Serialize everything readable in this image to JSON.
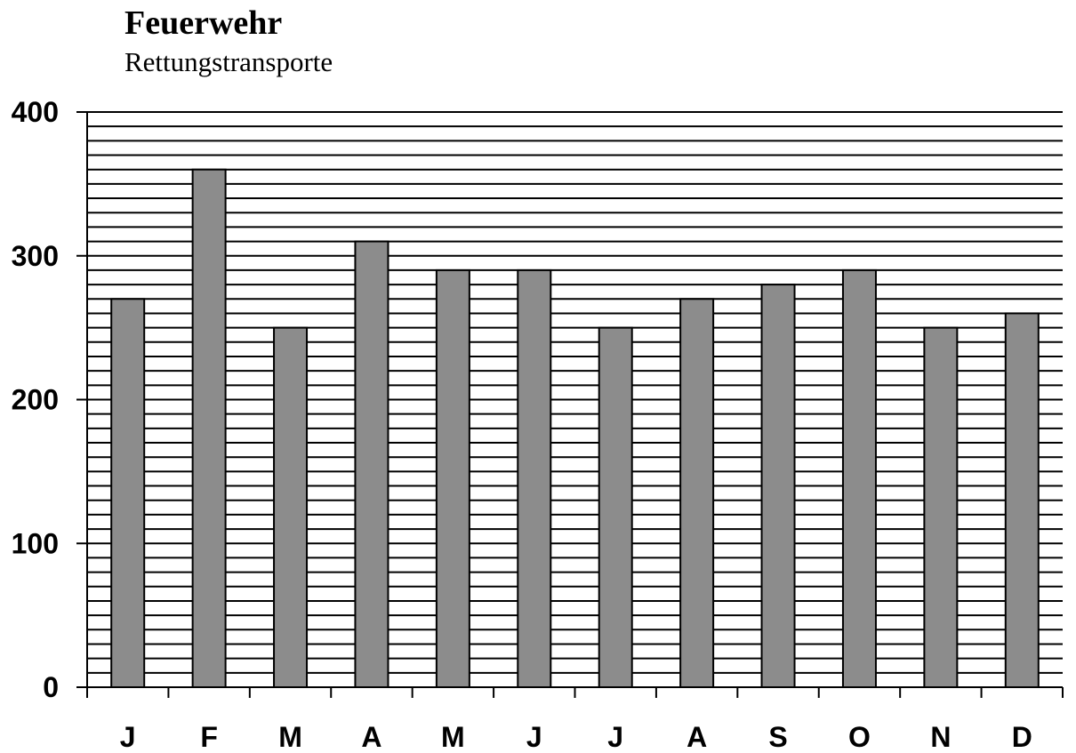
{
  "chart_data": {
    "type": "bar",
    "title": "Feuerwehr",
    "subtitle": "Rettungstransporte",
    "categories": [
      "J",
      "F",
      "M",
      "A",
      "M",
      "J",
      "J",
      "A",
      "S",
      "O",
      "N",
      "D"
    ],
    "values": [
      270,
      360,
      250,
      310,
      290,
      290,
      250,
      270,
      280,
      290,
      250,
      260
    ],
    "ylim": [
      0,
      400
    ],
    "yticks": [
      0,
      100,
      200,
      300,
      400
    ],
    "ytick_labels": [
      "0",
      "100",
      "200",
      "300",
      "400"
    ],
    "minor_grid_step": 10,
    "grid": true,
    "bar_color": "#8c8c8c",
    "grid_color": "#000000"
  }
}
